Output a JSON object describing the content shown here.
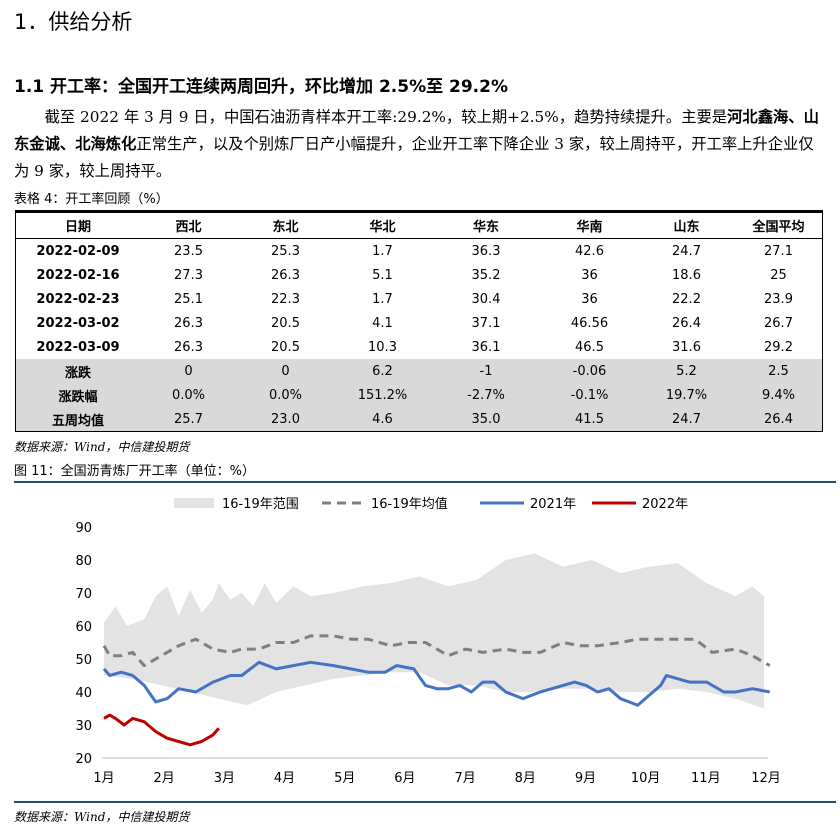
{
  "section_title": "1．供给分析",
  "subsection_title": "1.1 开工率：全国开工连续两周回升，环比增加 2.5%至 29.2%",
  "paragraph": {
    "part1": "截至 2022 年 3 月 9 日，中国石油沥青样本开工率:29.2%，较上期+2.5%，趋势持续提升。主要是",
    "bold1": "河北鑫海、山东金诚、北海炼化",
    "part2": "正常生产，以及个别炼厂日产小幅提升，企业开工率下降企业 3 家，较上周持平，开工率上升企业仅为 9 家，较上周持平。"
  },
  "table": {
    "caption": "表格 4：开工率回顾（%）",
    "headers": [
      "日期",
      "西北",
      "东北",
      "华北",
      "华东",
      "华南",
      "山东",
      "全国平均"
    ],
    "rows": [
      [
        "2022-02-09",
        "23.5",
        "25.3",
        "1.7",
        "36.3",
        "42.6",
        "24.7",
        "27.1"
      ],
      [
        "2022-02-16",
        "27.3",
        "26.3",
        "5.1",
        "35.2",
        "36",
        "18.6",
        "25"
      ],
      [
        "2022-02-23",
        "25.1",
        "22.3",
        "1.7",
        "30.4",
        "36",
        "22.2",
        "23.9"
      ],
      [
        "2022-03-02",
        "26.3",
        "20.5",
        "4.1",
        "37.1",
        "46.56",
        "26.4",
        "26.7"
      ],
      [
        "2022-03-09",
        "26.3",
        "20.5",
        "10.3",
        "36.1",
        "46.5",
        "31.6",
        "29.2"
      ]
    ],
    "summary_rows": [
      [
        "涨跌",
        "0",
        "0",
        "6.2",
        "-1",
        "-0.06",
        "5.2",
        "2.5"
      ],
      [
        "涨跌幅",
        "0.0%",
        "0.0%",
        "151.2%",
        "-2.7%",
        "-0.1%",
        "19.7%",
        "9.4%"
      ],
      [
        "五周均值",
        "25.7",
        "23.0",
        "4.6",
        "35.0",
        "41.5",
        "24.7",
        "26.4"
      ]
    ],
    "source": "数据来源：Wind，中信建投期货"
  },
  "figure": {
    "caption": "图 11：全国沥青炼厂开工率（单位：%）",
    "source": "数据来源：Wind，中信建投期货"
  },
  "chart_data": {
    "type": "line",
    "title": "全国沥青炼厂开工率（单位：%）",
    "xlabel": "",
    "ylabel": "",
    "ylim": [
      20,
      90
    ],
    "yticks": [
      20,
      30,
      40,
      50,
      60,
      70,
      80,
      90
    ],
    "x_tick_labels": [
      "1月",
      "2月",
      "3月",
      "4月",
      "5月",
      "6月",
      "7月",
      "8月",
      "9月",
      "10月",
      "11月",
      "12月"
    ],
    "legend": [
      "16-19年范围",
      "16-19年均值",
      "2021年",
      "2022年"
    ],
    "legend_position": "top",
    "grid": false,
    "colors": {
      "range": "#e3e3e3",
      "avg": "#7f7f7f",
      "y2021": "#4472c4",
      "y2022": "#c00000"
    },
    "range_upper": {
      "x": [
        0.0,
        0.2,
        0.4,
        0.7,
        0.9,
        1.1,
        1.3,
        1.5,
        1.7,
        1.9,
        2.0,
        2.2,
        2.4,
        2.6,
        2.8,
        3.0,
        3.3,
        3.6,
        4.0,
        4.5,
        5.0,
        5.5,
        6.0,
        6.5,
        7.0,
        7.5,
        8.0,
        8.5,
        9.0,
        9.5,
        10.0,
        10.5,
        11.0,
        11.3,
        11.5
      ],
      "y": [
        61,
        66,
        60,
        62,
        69,
        72,
        63,
        71,
        64,
        68,
        73,
        68,
        70,
        66,
        73,
        67,
        72,
        69,
        70,
        72,
        73,
        75,
        72,
        74,
        80,
        82,
        78,
        80,
        76,
        78,
        79,
        73,
        69,
        72,
        69
      ]
    },
    "range_lower": {
      "x": [
        0.0,
        0.5,
        1.0,
        1.5,
        2.0,
        2.5,
        3.0,
        3.5,
        4.0,
        4.5,
        5.0,
        5.5,
        6.0,
        6.5,
        7.0,
        7.5,
        8.0,
        8.5,
        9.0,
        9.5,
        10.0,
        10.5,
        11.0,
        11.5
      ],
      "y": [
        45,
        44,
        42,
        40,
        38,
        36,
        40,
        42,
        44,
        45,
        46,
        46,
        42,
        42,
        40,
        40,
        41,
        41,
        40,
        40,
        41,
        40,
        38,
        35
      ]
    },
    "series": [
      {
        "name": "16-19年均值",
        "x": [
          0.0,
          0.1,
          0.3,
          0.5,
          0.7,
          0.9,
          1.1,
          1.3,
          1.6,
          1.9,
          2.2,
          2.4,
          2.7,
          3.0,
          3.3,
          3.6,
          4.0,
          4.3,
          4.6,
          5.0,
          5.3,
          5.6,
          6.0,
          6.3,
          6.6,
          7.0,
          7.3,
          7.6,
          8.0,
          8.3,
          8.6,
          9.0,
          9.3,
          9.6,
          10.0,
          10.3,
          10.6,
          11.0,
          11.3,
          11.6
        ],
        "y": [
          54,
          51,
          51,
          52,
          48,
          50,
          52,
          54,
          56,
          53,
          52,
          53,
          53,
          55,
          55,
          57,
          57,
          56,
          56,
          54,
          55,
          55,
          51,
          53,
          52,
          53,
          52,
          52,
          55,
          54,
          54,
          55,
          56,
          56,
          56,
          56,
          52,
          53,
          51,
          48
        ]
      },
      {
        "name": "2021年",
        "x": [
          0.0,
          0.1,
          0.3,
          0.5,
          0.7,
          0.9,
          1.1,
          1.3,
          1.6,
          1.9,
          2.2,
          2.4,
          2.7,
          3.0,
          3.3,
          3.6,
          4.0,
          4.3,
          4.6,
          4.9,
          5.1,
          5.4,
          5.6,
          5.8,
          6.0,
          6.2,
          6.4,
          6.6,
          6.8,
          7.0,
          7.3,
          7.6,
          8.0,
          8.2,
          8.4,
          8.6,
          8.8,
          9.0,
          9.3,
          9.5,
          9.7,
          9.8,
          10.0,
          10.2,
          10.5,
          10.8,
          11.0,
          11.3,
          11.6
        ],
        "y": [
          47,
          45,
          46,
          45,
          42,
          37,
          38,
          41,
          40,
          43,
          45,
          45,
          49,
          47,
          48,
          49,
          48,
          47,
          46,
          46,
          48,
          47,
          42,
          41,
          41,
          42,
          40,
          43,
          43,
          40,
          38,
          40,
          42,
          43,
          42,
          40,
          41,
          38,
          36,
          39,
          42,
          45,
          44,
          43,
          43,
          40,
          40,
          41,
          40
        ]
      },
      {
        "name": "2022年",
        "x": [
          0.0,
          0.1,
          0.2,
          0.35,
          0.5,
          0.7,
          0.9,
          1.0,
          1.1,
          1.3,
          1.5,
          1.7,
          1.9,
          2.0
        ],
        "y": [
          32,
          33,
          32,
          30,
          32,
          31,
          28,
          27,
          26,
          25,
          24,
          25,
          27,
          29
        ]
      }
    ]
  }
}
